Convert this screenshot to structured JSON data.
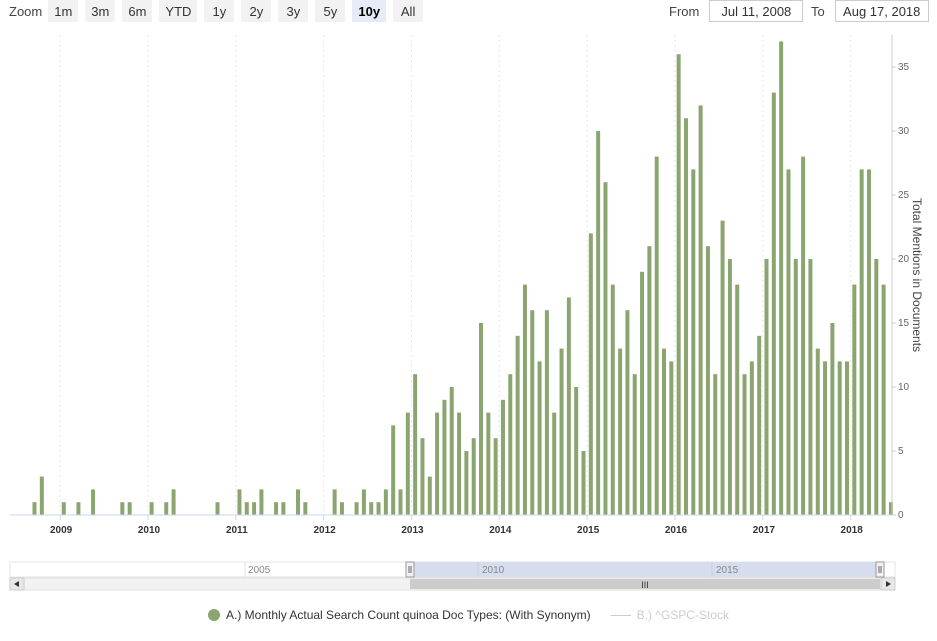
{
  "zoom": {
    "label": "Zoom",
    "buttons": [
      "1m",
      "3m",
      "6m",
      "YTD",
      "1y",
      "2y",
      "3y",
      "5y",
      "10y",
      "All"
    ],
    "active": "10y"
  },
  "range": {
    "from_label": "From",
    "from_value": "Jul 11, 2008",
    "to_label": "To",
    "to_value": "Aug 17, 2018"
  },
  "legend": {
    "series_a": "A.) Monthly Actual Search Count quinoa Doc Types: (With Synonym)",
    "series_b": "B.) ^GSPC-Stock"
  },
  "navigator": {
    "labels": [
      "2005",
      "2010",
      "2015"
    ],
    "handle_glyph": "III"
  },
  "colors": {
    "bar": "#8ba570",
    "navigator_mask": "#d5ddef",
    "grid": "#e6e6e6"
  },
  "chart_data": {
    "type": "bar",
    "ylabel": "Total Mentions in Documents",
    "ylim": [
      0,
      37.5
    ],
    "y_ticks": [
      0,
      5,
      10,
      15,
      20,
      25,
      30,
      35
    ],
    "x_ticks": [
      "2009",
      "2010",
      "2011",
      "2012",
      "2013",
      "2014",
      "2015",
      "2016",
      "2017",
      "2018"
    ],
    "start": "2008-09",
    "series": [
      {
        "values": [
          1,
          3,
          0,
          0,
          1,
          0,
          1,
          0,
          2,
          0,
          0,
          0,
          1,
          1,
          0,
          0,
          1,
          0,
          1,
          2,
          0,
          0,
          0,
          0,
          0,
          1,
          0,
          0,
          2,
          1,
          1,
          2,
          0,
          1,
          1,
          0,
          2,
          1,
          0,
          0,
          0,
          2,
          1,
          0,
          1,
          2,
          1,
          1,
          2,
          7,
          2,
          8,
          11,
          6,
          3,
          8,
          9,
          10,
          8,
          5,
          6,
          15,
          8,
          6,
          9,
          11,
          14,
          18,
          16,
          12,
          16,
          8,
          13,
          17,
          10,
          5,
          22,
          30,
          26,
          18,
          13,
          16,
          11,
          19,
          21,
          28,
          13,
          12,
          36,
          31,
          27,
          32,
          21,
          11,
          23,
          20,
          18,
          11,
          12,
          14,
          20,
          33,
          37,
          27,
          20,
          28,
          20,
          13,
          12,
          15,
          12,
          12,
          18,
          27,
          27,
          20,
          18,
          1
        ]
      }
    ]
  }
}
